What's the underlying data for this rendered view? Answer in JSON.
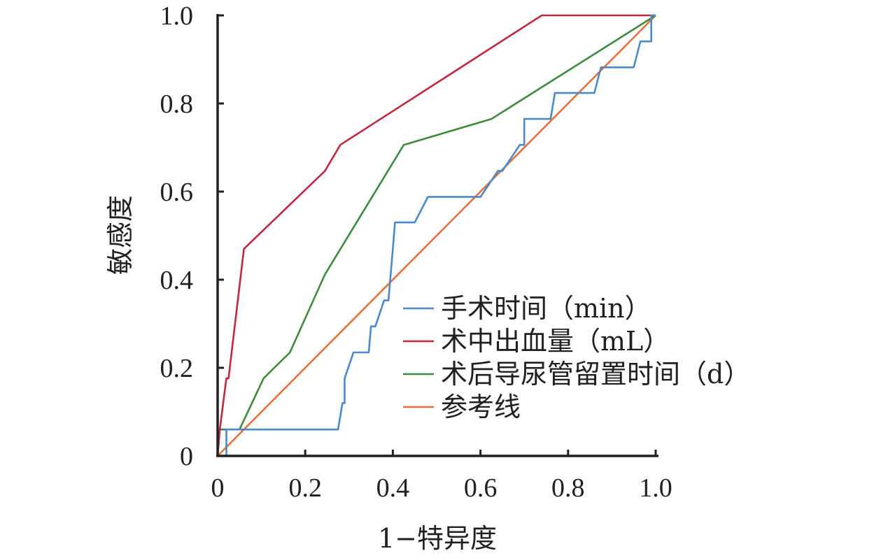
{
  "chart_data": {
    "type": "line",
    "title": "",
    "xlabel": "1−特异度",
    "ylabel": "敏感度",
    "xlim": [
      0,
      1
    ],
    "ylim": [
      0,
      1
    ],
    "x_ticks": [
      "0",
      "0.2",
      "0.4",
      "0.6",
      "0.8",
      "1.0"
    ],
    "y_ticks": [
      "0",
      "0.2",
      "0.4",
      "0.6",
      "0.8",
      "1.0"
    ],
    "grid": false,
    "legend_position": "bottom-right",
    "series": [
      {
        "name": "手术时间（min）",
        "color": "#4a8ac9",
        "points": [
          [
            0.0,
            0.0
          ],
          [
            0.02,
            0.0
          ],
          [
            0.02,
            0.06
          ],
          [
            0.275,
            0.06
          ],
          [
            0.285,
            0.12
          ],
          [
            0.29,
            0.12
          ],
          [
            0.29,
            0.176
          ],
          [
            0.31,
            0.235
          ],
          [
            0.345,
            0.235
          ],
          [
            0.35,
            0.294
          ],
          [
            0.36,
            0.294
          ],
          [
            0.38,
            0.353
          ],
          [
            0.39,
            0.353
          ],
          [
            0.4,
            0.47
          ],
          [
            0.405,
            0.53
          ],
          [
            0.45,
            0.53
          ],
          [
            0.48,
            0.588
          ],
          [
            0.6,
            0.588
          ],
          [
            0.64,
            0.647
          ],
          [
            0.65,
            0.647
          ],
          [
            0.69,
            0.706
          ],
          [
            0.7,
            0.706
          ],
          [
            0.7,
            0.765
          ],
          [
            0.76,
            0.765
          ],
          [
            0.77,
            0.824
          ],
          [
            0.86,
            0.824
          ],
          [
            0.875,
            0.882
          ],
          [
            0.95,
            0.882
          ],
          [
            0.965,
            0.941
          ],
          [
            0.99,
            0.941
          ],
          [
            0.99,
            1.0
          ],
          [
            1.0,
            1.0
          ]
        ]
      },
      {
        "name": "术中出血量（mL）",
        "color": "#c1273f",
        "points": [
          [
            0.0,
            0.0
          ],
          [
            0.005,
            0.06
          ],
          [
            0.02,
            0.176
          ],
          [
            0.025,
            0.176
          ],
          [
            0.06,
            0.47
          ],
          [
            0.245,
            0.647
          ],
          [
            0.28,
            0.706
          ],
          [
            0.74,
            1.0
          ],
          [
            1.0,
            1.0
          ]
        ]
      },
      {
        "name": "术后导尿管留置时间（d）",
        "color": "#3d8b3d",
        "points": [
          [
            0.0,
            0.0
          ],
          [
            0.005,
            0.06
          ],
          [
            0.05,
            0.06
          ],
          [
            0.105,
            0.176
          ],
          [
            0.165,
            0.235
          ],
          [
            0.245,
            0.412
          ],
          [
            0.425,
            0.706
          ],
          [
            0.625,
            0.765
          ],
          [
            1.0,
            1.0
          ]
        ]
      },
      {
        "name": "参考线",
        "color": "#e8703a",
        "points": [
          [
            0.0,
            0.0
          ],
          [
            1.0,
            1.0
          ]
        ]
      }
    ]
  }
}
